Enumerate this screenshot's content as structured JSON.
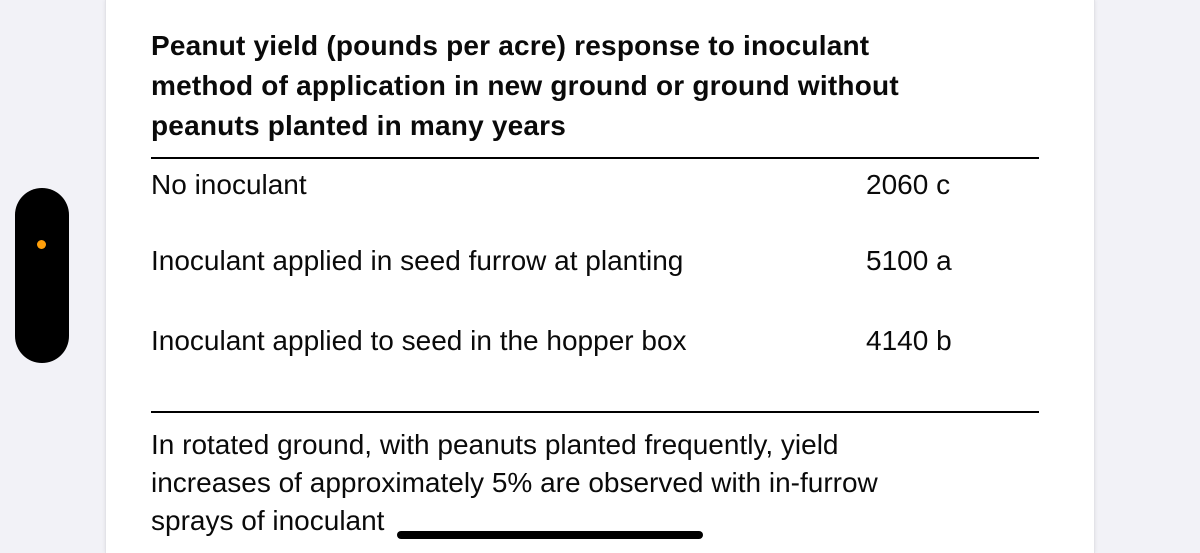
{
  "colors": {
    "background": "#f2f2f7",
    "card": "#ffffff",
    "text": "#0a0a0a",
    "camera_dot": "#ff9f0a",
    "rule": "#000000"
  },
  "table": {
    "title_lines": [
      "Peanut yield (pounds per acre) response to inoculant",
      "method of application in new ground or ground without",
      "peanuts planted in many years"
    ],
    "rows": [
      {
        "label": "No inoculant",
        "value": "2060 c"
      },
      {
        "label": "Inoculant applied in seed furrow at planting",
        "value": "5100 a"
      },
      {
        "label": "Inoculant applied to seed in the hopper box",
        "value": "4140 b"
      }
    ]
  },
  "footnote": {
    "lines": [
      "In rotated ground, with peanuts planted frequently, yield",
      "increases of approximately 5% are observed with in-furrow",
      "sprays of inoculant"
    ]
  }
}
